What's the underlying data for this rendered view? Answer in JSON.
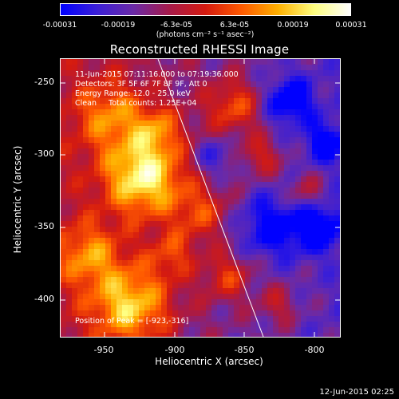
{
  "colorbar": {
    "ticks": [
      "-0.00031",
      "-0.00019",
      "-6.3e-05",
      "6.3e-05",
      "0.00019",
      "0.00031"
    ],
    "units": "(photons cm⁻² s⁻¹ asec⁻²)"
  },
  "title": "Reconstructed RHESSI Image",
  "info": {
    "time": "11-Jun-2015 07:11:16.000 to 07:19:36.000",
    "detectors": "Detectors: 3F 5F 6F 7F 8F 9F, Att 0",
    "energy": "Energy Range: 12.0 - 25.0 keV",
    "clean": "Clean     Total counts: 1.25E+04",
    "peak": "Position of Peak = [-923,-316]"
  },
  "axes": {
    "xlabel": "Heliocentric X (arcsec)",
    "ylabel": "Heliocentric Y (arcsec)",
    "xticks": [
      "-950",
      "-900",
      "-850",
      "-800"
    ],
    "yticks": [
      "-250",
      "-300",
      "-350",
      "-400"
    ],
    "xrange": [
      -978,
      -772
    ],
    "yrange": [
      -425,
      -220
    ]
  },
  "datestamp": "12-Jun-2015 02:25",
  "colors": {
    "colormap": [
      "#0000ff",
      "#3b1fd6",
      "#6a2aa8",
      "#a61a4a",
      "#d41a10",
      "#ff5a00",
      "#ffb000",
      "#ffff80",
      "#ffffff"
    ]
  }
}
